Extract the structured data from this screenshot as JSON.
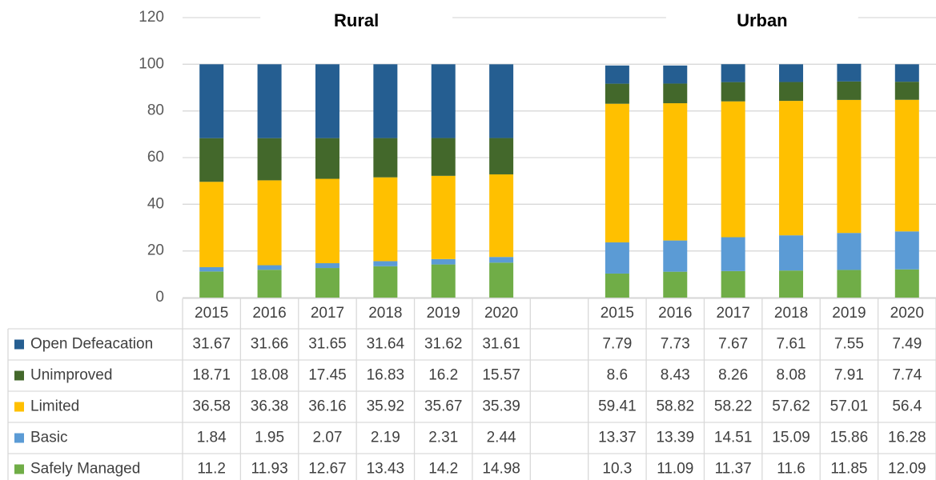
{
  "chart_data": {
    "type": "bar",
    "stacked": true,
    "annotations": [
      "Rural",
      "Urban"
    ],
    "categories": [
      "2015",
      "2016",
      "2017",
      "2018",
      "2019",
      "2020",
      null,
      "2015",
      "2016",
      "2017",
      "2018",
      "2019",
      "2020"
    ],
    "series": [
      {
        "name": "Safely Managed",
        "color": "#70ad47",
        "values": [
          11.2,
          11.93,
          12.67,
          13.43,
          14.2,
          14.98,
          null,
          10.3,
          11.09,
          11.37,
          11.6,
          11.85,
          12.09
        ]
      },
      {
        "name": "Basic",
        "color": "#5b9bd5",
        "values": [
          1.84,
          1.95,
          2.07,
          2.19,
          2.31,
          2.44,
          null,
          13.37,
          13.39,
          14.51,
          15.09,
          15.86,
          16.28
        ]
      },
      {
        "name": "Limited",
        "color": "#ffc000",
        "values": [
          36.58,
          36.38,
          36.16,
          35.92,
          35.67,
          35.39,
          null,
          59.41,
          58.82,
          58.22,
          57.62,
          57.01,
          56.4
        ]
      },
      {
        "name": "Unimproved",
        "color": "#43682b",
        "values": [
          18.71,
          18.08,
          17.45,
          16.83,
          16.2,
          15.57,
          null,
          8.6,
          8.43,
          8.26,
          8.08,
          7.91,
          7.74
        ]
      },
      {
        "name": "Open Defeacation",
        "color": "#255e91",
        "values": [
          31.67,
          31.66,
          31.65,
          31.64,
          31.62,
          31.61,
          null,
          7.79,
          7.73,
          7.67,
          7.61,
          7.55,
          7.49
        ]
      }
    ],
    "ylim": [
      0,
      120
    ],
    "yticks": [
      0,
      20,
      40,
      60,
      80,
      100,
      120
    ],
    "grid": true
  }
}
